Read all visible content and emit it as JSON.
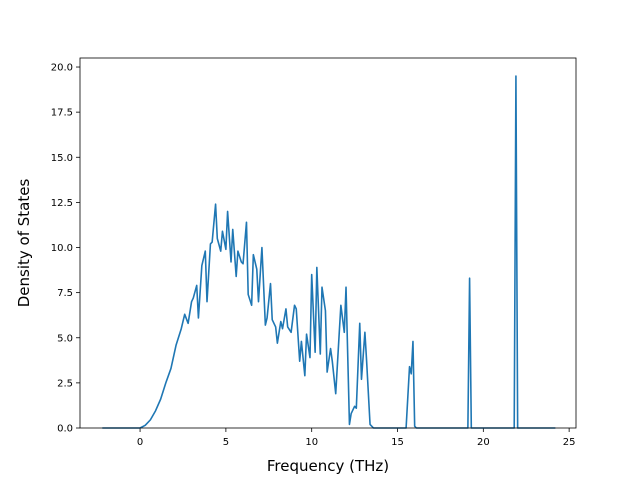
{
  "chart_data": {
    "type": "line",
    "title": "",
    "xlabel": "Frequency (THz)",
    "ylabel": "Density of States",
    "xlim": [
      -3.5,
      25.4
    ],
    "ylim": [
      0,
      20.5
    ],
    "xticks": [
      0,
      5,
      10,
      15,
      20,
      25
    ],
    "yticks": [
      0.0,
      2.5,
      5.0,
      7.5,
      10.0,
      12.5,
      15.0,
      17.5,
      20.0
    ],
    "xtick_labels": [
      "0",
      "5",
      "10",
      "15",
      "20",
      "25"
    ],
    "ytick_labels": [
      "0.0",
      "2.5",
      "5.0",
      "7.5",
      "10.0",
      "12.5",
      "15.0",
      "17.5",
      "20.0"
    ],
    "grid": false,
    "series": [
      {
        "color": "#1f77b4",
        "x": [
          -2.2,
          -1.5,
          -1.0,
          -0.5,
          0.0,
          0.3,
          0.6,
          0.9,
          1.2,
          1.5,
          1.8,
          2.1,
          2.4,
          2.6,
          2.8,
          3.0,
          3.1,
          3.3,
          3.4,
          3.6,
          3.8,
          3.9,
          4.1,
          4.2,
          4.4,
          4.5,
          4.7,
          4.8,
          5.0,
          5.1,
          5.3,
          5.4,
          5.6,
          5.7,
          5.9,
          6.0,
          6.2,
          6.3,
          6.5,
          6.6,
          6.8,
          6.9,
          7.1,
          7.3,
          7.4,
          7.6,
          7.7,
          7.9,
          8.0,
          8.2,
          8.3,
          8.5,
          8.6,
          8.8,
          9.0,
          9.1,
          9.3,
          9.4,
          9.6,
          9.7,
          9.9,
          10.0,
          10.2,
          10.3,
          10.5,
          10.6,
          10.8,
          10.9,
          11.1,
          11.2,
          11.4,
          11.6,
          11.7,
          11.9,
          12.0,
          12.2,
          12.3,
          12.5,
          12.6,
          12.8,
          12.9,
          13.1,
          13.2,
          13.4,
          13.6,
          13.8,
          14.5,
          15.0,
          15.5,
          15.7,
          15.8,
          15.9,
          16.0,
          16.1,
          16.2,
          17.0,
          18.0,
          19.1,
          19.2,
          19.3,
          19.4,
          20.0,
          21.0,
          21.8,
          21.9,
          22.0,
          22.1,
          23.0,
          24.2
        ],
        "y": [
          0.0,
          0.0,
          0.0,
          0.0,
          0.0,
          0.15,
          0.45,
          0.95,
          1.6,
          2.5,
          3.3,
          4.6,
          5.5,
          6.3,
          5.8,
          7.0,
          7.2,
          7.9,
          6.1,
          9.0,
          9.8,
          7.0,
          10.2,
          10.3,
          12.4,
          10.5,
          9.8,
          10.9,
          9.9,
          12.0,
          9.2,
          11.0,
          8.4,
          9.8,
          9.2,
          9.1,
          11.4,
          7.4,
          6.8,
          9.6,
          8.8,
          7.0,
          10.0,
          5.7,
          6.1,
          8.0,
          6.0,
          5.6,
          4.7,
          5.9,
          5.5,
          6.6,
          5.6,
          5.3,
          6.8,
          6.6,
          3.7,
          4.8,
          2.9,
          5.2,
          3.9,
          8.5,
          4.2,
          8.9,
          4.1,
          7.8,
          6.5,
          3.1,
          4.4,
          3.7,
          1.9,
          5.2,
          6.8,
          5.3,
          7.8,
          0.2,
          0.8,
          1.2,
          1.1,
          5.8,
          2.7,
          5.3,
          3.7,
          0.2,
          0.0,
          0.0,
          0.0,
          0.0,
          0.0,
          3.4,
          3.0,
          4.8,
          0.1,
          0.0,
          0.0,
          0.0,
          0.0,
          0.0,
          8.3,
          0.0,
          0.0,
          0.0,
          0.0,
          0.0,
          19.5,
          0.0,
          0.0,
          0.0,
          0.0
        ]
      }
    ]
  }
}
